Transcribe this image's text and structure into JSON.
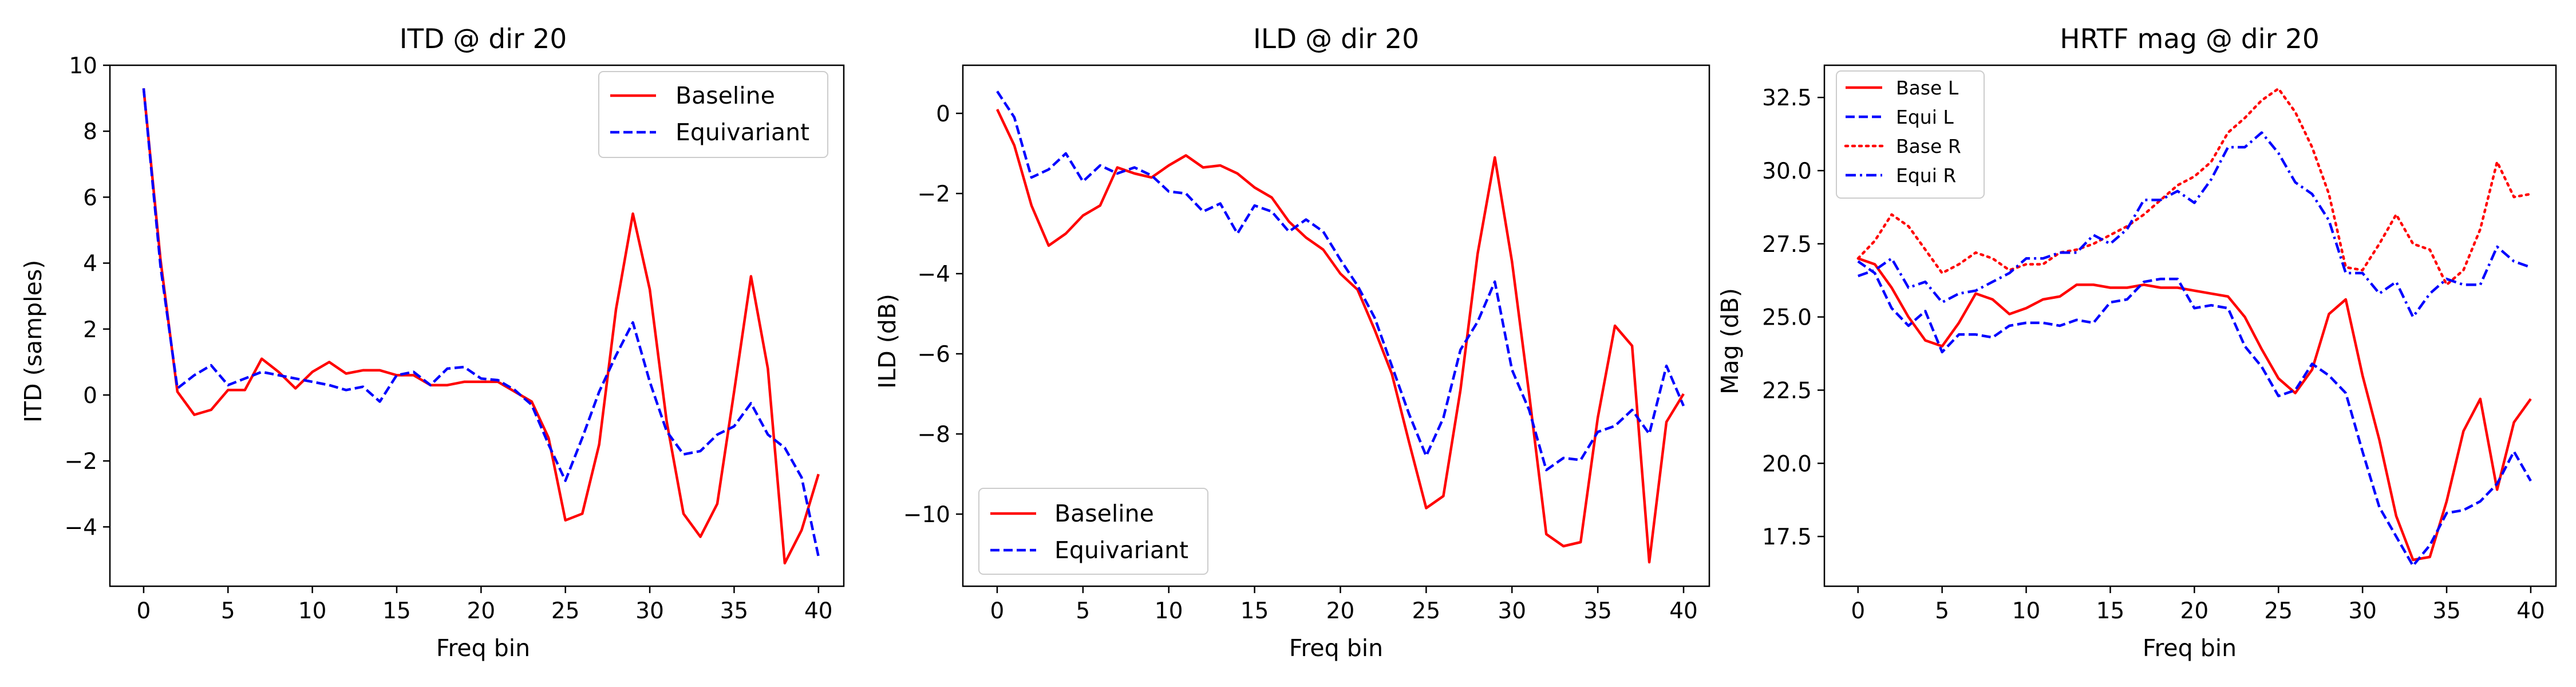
{
  "colors": {
    "red": "#ff0000",
    "blue": "#0000ff"
  },
  "chart_data": [
    {
      "type": "line",
      "title": "ITD @ dir 20",
      "xlabel": "Freq bin",
      "ylabel": "ITD (samples)",
      "xlim": [
        -2,
        41.5
      ],
      "ylim": [
        -5.8,
        10
      ],
      "xticks": [
        0,
        5,
        10,
        15,
        20,
        25,
        30,
        35,
        40
      ],
      "yticks": [
        -4,
        -2,
        0,
        2,
        4,
        6,
        8,
        10
      ],
      "ytick_labels": [
        "−4",
        "−2",
        "0",
        "2",
        "4",
        "6",
        "8",
        "10"
      ],
      "legend": "top-right",
      "x": [
        0,
        1,
        2,
        3,
        4,
        5,
        6,
        7,
        8,
        9,
        10,
        11,
        12,
        13,
        14,
        15,
        16,
        17,
        18,
        19,
        20,
        21,
        22,
        23,
        24,
        25,
        26,
        27,
        28,
        29,
        30,
        31,
        32,
        33,
        34,
        35,
        36,
        37,
        38,
        39,
        40
      ],
      "series": [
        {
          "name": "Baseline",
          "color": "#ff0000",
          "dash": "solid",
          "values": [
            9.3,
            4.1,
            0.1,
            -0.6,
            -0.45,
            0.15,
            0.15,
            1.1,
            0.7,
            0.2,
            0.7,
            1.0,
            0.65,
            0.75,
            0.75,
            0.6,
            0.6,
            0.3,
            0.3,
            0.4,
            0.4,
            0.4,
            0.1,
            -0.2,
            -1.3,
            -3.8,
            -3.6,
            -1.5,
            2.6,
            5.5,
            3.2,
            -0.8,
            -3.6,
            -4.3,
            -3.3,
            0.1,
            3.6,
            0.8,
            -5.1,
            -4.1,
            -2.4
          ]
        },
        {
          "name": "Equivariant",
          "color": "#0000ff",
          "dash": "dashed",
          "values": [
            9.3,
            3.9,
            0.2,
            0.6,
            0.9,
            0.3,
            0.5,
            0.7,
            0.6,
            0.5,
            0.4,
            0.3,
            0.15,
            0.25,
            -0.2,
            0.6,
            0.7,
            0.3,
            0.8,
            0.85,
            0.5,
            0.45,
            0.15,
            -0.3,
            -1.5,
            -2.6,
            -1.3,
            0.1,
            1.2,
            2.2,
            0.4,
            -1.1,
            -1.8,
            -1.7,
            -1.2,
            -0.95,
            -0.25,
            -1.2,
            -1.6,
            -2.5,
            -4.9
          ]
        }
      ]
    },
    {
      "type": "line",
      "title": "ILD @ dir 20",
      "xlabel": "Freq bin",
      "ylabel": "ILD (dB)",
      "xlim": [
        -2,
        41.5
      ],
      "ylim": [
        -11.8,
        1.2
      ],
      "xticks": [
        0,
        5,
        10,
        15,
        20,
        25,
        30,
        35,
        40
      ],
      "yticks": [
        -10,
        -8,
        -6,
        -4,
        -2,
        0
      ],
      "ytick_labels": [
        "−10",
        "−8",
        "−6",
        "−4",
        "−2",
        "0"
      ],
      "legend": "bottom-left",
      "x": [
        0,
        1,
        2,
        3,
        4,
        5,
        6,
        7,
        8,
        9,
        10,
        11,
        12,
        13,
        14,
        15,
        16,
        17,
        18,
        19,
        20,
        21,
        22,
        23,
        24,
        25,
        26,
        27,
        28,
        29,
        30,
        31,
        32,
        33,
        34,
        35,
        36,
        37,
        38,
        39,
        40
      ],
      "series": [
        {
          "name": "Baseline",
          "color": "#ff0000",
          "dash": "solid",
          "values": [
            0.1,
            -0.8,
            -2.3,
            -3.3,
            -3.0,
            -2.55,
            -2.3,
            -1.35,
            -1.5,
            -1.6,
            -1.3,
            -1.05,
            -1.35,
            -1.3,
            -1.5,
            -1.85,
            -2.1,
            -2.7,
            -3.1,
            -3.4,
            -4.0,
            -4.4,
            -5.4,
            -6.5,
            -8.2,
            -9.85,
            -9.55,
            -6.9,
            -3.5,
            -1.1,
            -3.7,
            -7.0,
            -10.5,
            -10.8,
            -10.7,
            -7.6,
            -5.3,
            -5.8,
            -11.2,
            -7.7,
            -7.0
          ]
        },
        {
          "name": "Equivariant",
          "color": "#0000ff",
          "dash": "dashed",
          "values": [
            0.55,
            -0.1,
            -1.6,
            -1.4,
            -1.0,
            -1.7,
            -1.3,
            -1.5,
            -1.35,
            -1.55,
            -1.95,
            -2.0,
            -2.45,
            -2.25,
            -3.0,
            -2.3,
            -2.45,
            -2.95,
            -2.65,
            -2.95,
            -3.65,
            -4.3,
            -5.1,
            -6.3,
            -7.5,
            -8.55,
            -7.6,
            -5.9,
            -5.2,
            -4.2,
            -6.4,
            -7.4,
            -8.9,
            -8.6,
            -8.65,
            -7.95,
            -7.8,
            -7.4,
            -8.0,
            -6.3,
            -7.3
          ]
        }
      ]
    },
    {
      "type": "line",
      "title": "HRTF mag @ dir 20",
      "xlabel": "Freq bin",
      "ylabel": "Mag (dB)",
      "xlim": [
        -2,
        41.5
      ],
      "ylim": [
        15.8,
        33.6
      ],
      "xticks": [
        0,
        5,
        10,
        15,
        20,
        25,
        30,
        35,
        40
      ],
      "yticks": [
        17.5,
        20.0,
        22.5,
        25.0,
        27.5,
        30.0,
        32.5
      ],
      "ytick_labels": [
        "17.5",
        "20.0",
        "22.5",
        "25.0",
        "27.5",
        "30.0",
        "32.5"
      ],
      "legend": "top-left",
      "x": [
        0,
        1,
        2,
        3,
        4,
        5,
        6,
        7,
        8,
        9,
        10,
        11,
        12,
        13,
        14,
        15,
        16,
        17,
        18,
        19,
        20,
        21,
        22,
        23,
        24,
        25,
        26,
        27,
        28,
        29,
        30,
        31,
        32,
        33,
        34,
        35,
        36,
        37,
        38,
        39,
        40
      ],
      "series": [
        {
          "name": "Base L",
          "color": "#ff0000",
          "dash": "solid",
          "values": [
            27.0,
            26.8,
            26.0,
            25.0,
            24.2,
            24.0,
            24.8,
            25.8,
            25.6,
            25.1,
            25.3,
            25.6,
            25.7,
            26.1,
            26.1,
            26.0,
            26.0,
            26.1,
            26.0,
            26.0,
            25.9,
            25.8,
            25.7,
            25.0,
            23.9,
            22.9,
            22.4,
            23.2,
            25.1,
            25.6,
            23.0,
            20.8,
            18.2,
            16.7,
            16.8,
            18.7,
            21.1,
            22.2,
            19.1,
            21.4,
            22.2
          ]
        },
        {
          "name": "Equi L",
          "color": "#0000ff",
          "dash": "dashed",
          "values": [
            26.9,
            26.5,
            25.3,
            24.7,
            25.2,
            23.8,
            24.4,
            24.4,
            24.3,
            24.7,
            24.8,
            24.8,
            24.7,
            24.9,
            24.8,
            25.5,
            25.6,
            26.2,
            26.3,
            26.3,
            25.3,
            25.4,
            25.3,
            24.0,
            23.3,
            22.3,
            22.5,
            23.4,
            23.0,
            22.4,
            20.4,
            18.5,
            17.5,
            16.5,
            17.2,
            18.3,
            18.4,
            18.7,
            19.3,
            20.4,
            19.4
          ]
        },
        {
          "name": "Base R",
          "color": "#ff0000",
          "dash": "dotted",
          "values": [
            27.0,
            27.6,
            28.5,
            28.1,
            27.3,
            26.5,
            26.8,
            27.2,
            27.0,
            26.6,
            26.8,
            26.8,
            27.2,
            27.3,
            27.5,
            27.8,
            28.1,
            28.5,
            29.0,
            29.5,
            29.8,
            30.3,
            31.3,
            31.8,
            32.4,
            32.8,
            32.0,
            30.8,
            29.2,
            26.7,
            26.6,
            27.5,
            28.5,
            27.5,
            27.3,
            26.1,
            26.6,
            28.0,
            30.3,
            29.1,
            29.2
          ]
        },
        {
          "name": "Equi R",
          "color": "#0000ff",
          "dash": "dashdot",
          "values": [
            26.4,
            26.6,
            27.0,
            26.0,
            26.2,
            25.5,
            25.8,
            25.9,
            26.2,
            26.5,
            27.0,
            27.0,
            27.2,
            27.2,
            27.8,
            27.5,
            28.0,
            29.0,
            29.0,
            29.3,
            28.9,
            29.7,
            30.8,
            30.8,
            31.3,
            30.6,
            29.6,
            29.2,
            28.3,
            26.5,
            26.5,
            25.8,
            26.2,
            25.0,
            25.8,
            26.3,
            26.1,
            26.1,
            27.4,
            26.9,
            26.7
          ]
        }
      ]
    }
  ]
}
